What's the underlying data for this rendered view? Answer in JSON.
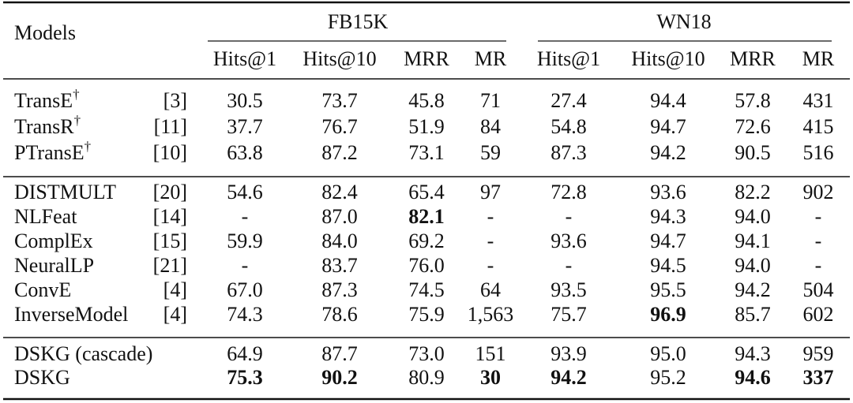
{
  "header": {
    "models": "Models",
    "groups": [
      {
        "name": "FB15K"
      },
      {
        "name": "WN18"
      }
    ],
    "columns": [
      "Hits@1",
      "Hits@10",
      "MRR",
      "MR",
      "Hits@1",
      "Hits@10",
      "MRR",
      "MR"
    ]
  },
  "sections": [
    {
      "rows": [
        {
          "model": "TransE",
          "mark": "†",
          "ref": "[3]",
          "cells": [
            "30.5",
            "73.7",
            "45.8",
            "71",
            "27.4",
            "94.4",
            "57.8",
            "431"
          ]
        },
        {
          "model": "TransR",
          "mark": "†",
          "ref": "[11]",
          "cells": [
            "37.7",
            "76.7",
            "51.9",
            "84",
            "54.8",
            "94.7",
            "72.6",
            "415"
          ]
        },
        {
          "model": "PTransE",
          "mark": "†",
          "ref": "[10]",
          "cells": [
            "63.8",
            "87.2",
            "73.1",
            "59",
            "87.3",
            "94.2",
            "90.5",
            "516"
          ]
        }
      ]
    },
    {
      "rows": [
        {
          "model": "DISTMULT",
          "ref": "[20]",
          "cells": [
            "54.6",
            "82.4",
            "65.4",
            "97",
            "72.8",
            "93.6",
            "82.2",
            "902"
          ]
        },
        {
          "model": "NLFeat",
          "ref": "[14]",
          "cells": [
            "-",
            "87.0",
            {
              "text": "82.1",
              "bold": true
            },
            "-",
            "-",
            "94.3",
            "94.0",
            "-"
          ]
        },
        {
          "model": "ComplEx",
          "ref": "[15]",
          "cells": [
            "59.9",
            "84.0",
            "69.2",
            "-",
            "93.6",
            "94.7",
            "94.1",
            "-"
          ]
        },
        {
          "model": "NeuralLP",
          "ref": "[21]",
          "cells": [
            "-",
            "83.7",
            "76.0",
            "-",
            "-",
            "94.5",
            "94.0",
            "-"
          ]
        },
        {
          "model": "ConvE",
          "ref": "[4]",
          "cells": [
            "67.0",
            "87.3",
            "74.5",
            "64",
            "93.5",
            "95.5",
            "94.2",
            "504"
          ]
        },
        {
          "model": "InverseModel",
          "ref": "[4]",
          "cells": [
            "74.3",
            "78.6",
            "75.9",
            "1,563",
            "75.7",
            {
              "text": "96.9",
              "bold": true
            },
            "85.7",
            "602"
          ]
        }
      ]
    },
    {
      "rows": [
        {
          "model": "DSKG (cascade)",
          "cells": [
            "64.9",
            "87.7",
            "73.0",
            "151",
            "93.9",
            "95.0",
            "94.3",
            "959"
          ]
        },
        {
          "model": "DSKG",
          "cells": [
            {
              "text": "75.3",
              "bold": true
            },
            {
              "text": "90.2",
              "bold": true
            },
            "80.9",
            {
              "text": "30",
              "bold": true
            },
            {
              "text": "94.2",
              "bold": true
            },
            "95.2",
            {
              "text": "94.6",
              "bold": true
            },
            {
              "text": "337",
              "bold": true
            }
          ]
        }
      ]
    }
  ]
}
